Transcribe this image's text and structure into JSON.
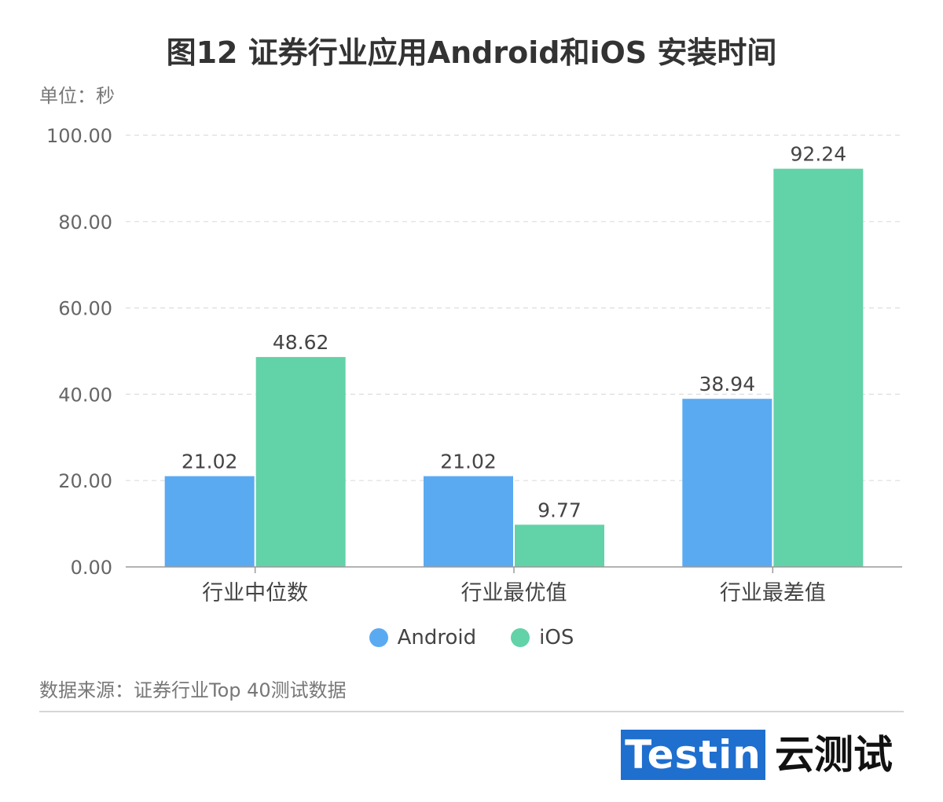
{
  "chart_data": {
    "type": "bar",
    "title": "图12 证券行业应用Android和iOS 安装时间",
    "unit_label": "单位：秒",
    "categories": [
      "行业中位数",
      "行业最优值",
      "行业最差值"
    ],
    "series": [
      {
        "name": "Android",
        "values": [
          21.02,
          21.02,
          38.94
        ],
        "color": "#5aaaf2"
      },
      {
        "name": "iOS",
        "values": [
          48.62,
          9.77,
          92.24
        ],
        "color": "#62d2a8"
      }
    ],
    "value_labels": [
      [
        "21.02",
        "21.02",
        "38.94"
      ],
      [
        "48.62",
        "9.77",
        "92.24"
      ]
    ],
    "yticks": [
      "0.00",
      "20.00",
      "40.00",
      "60.00",
      "80.00",
      "100.00"
    ],
    "ylim": [
      0,
      100
    ],
    "grid": true,
    "legend_position": "bottom-center"
  },
  "footer": {
    "source": "数据来源：证券行业Top 40测试数据",
    "brand_en": "Testin",
    "brand_cn": "云测试"
  }
}
